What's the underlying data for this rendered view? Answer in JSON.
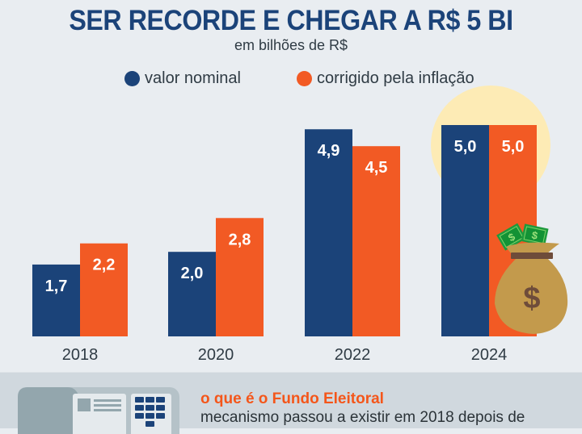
{
  "header": {
    "title": "SER RECORDE E CHEGAR A R$ 5 BI",
    "subtitle": "em bilhões de R$"
  },
  "legend": [
    {
      "label": "valor nominal",
      "color": "#1b4379"
    },
    {
      "label": "corrigido pela inflação",
      "color": "#f25a24"
    }
  ],
  "chart_data": {
    "type": "bar",
    "title": "SER RECORDE E CHEGAR A R$ 5 BI",
    "subtitle": "em bilhões de R$",
    "xlabel": "",
    "ylabel": "",
    "ylim": [
      0,
      5
    ],
    "grid": false,
    "legend_position": "top",
    "categories": [
      "2018",
      "2020",
      "2022",
      "2024"
    ],
    "series": [
      {
        "name": "valor nominal",
        "color": "#1b4379",
        "values": [
          1.7,
          2.0,
          4.9,
          5.0
        ],
        "labels": [
          "1,7",
          "2,0",
          "4,9",
          "5,0"
        ]
      },
      {
        "name": "corrigido pela inflação",
        "color": "#f25a24",
        "values": [
          2.2,
          2.8,
          4.5,
          5.0
        ],
        "labels": [
          "2,2",
          "2,8",
          "4,5",
          "5,0"
        ]
      }
    ],
    "highlight": {
      "category": "2024",
      "color": "#fdebb5"
    },
    "decoration": "money-bag-icon"
  },
  "info": {
    "title": "o que é o Fundo Eleitoral",
    "text": "mecanismo passou a existir em 2018 depois de"
  }
}
